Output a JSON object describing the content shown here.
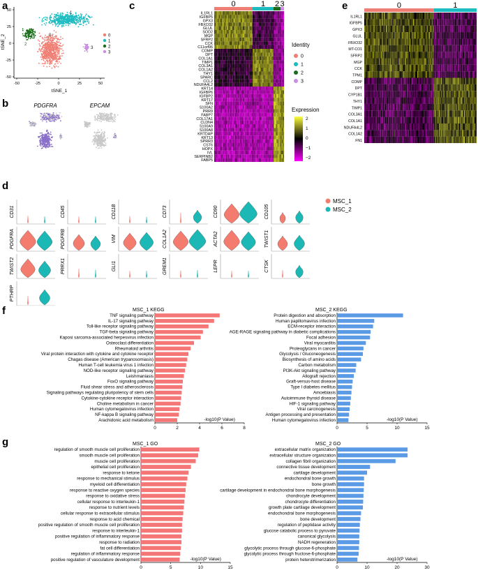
{
  "panel_labels": {
    "a": "a",
    "b": "b",
    "c": "c",
    "d": "d",
    "e": "e",
    "f": "f",
    "g": "g"
  },
  "colors": {
    "c0": "#ef7f75",
    "c1": "#1dbcc1",
    "c2": "#1a6b1a",
    "c3": "#c98fe0",
    "msc1": "#f47c6e",
    "msc2": "#1bb8b6",
    "bar_red": "#f47676",
    "bar_blue": "#5b9be6",
    "pdgfra": "#8a6fc9",
    "grey": "#c8c8c8"
  },
  "panel_a": {
    "xlabel": "tSNE_1",
    "ylabel": "tSNE_2",
    "xticks": [
      "-50",
      "-25",
      "0",
      "25",
      "50"
    ],
    "yticks": [
      "50",
      "25",
      "0",
      "-25",
      "-50"
    ],
    "legend": [
      {
        "label": "0",
        "color": "#ef7f75"
      },
      {
        "label": "1",
        "color": "#1dbcc1"
      },
      {
        "label": "2",
        "color": "#1a6b1a"
      },
      {
        "label": "3",
        "color": "#c98fe0"
      }
    ],
    "cluster_labels": [
      "0",
      "1",
      "2",
      "3"
    ]
  },
  "panel_b": {
    "genes": [
      "PDGFRA",
      "EPCAM"
    ]
  },
  "panel_c": {
    "cluster_headers": [
      "0",
      "1",
      "2",
      "3"
    ],
    "genes": [
      "IL1RL1",
      "IGFBP5",
      "GPX3",
      "FBXO32",
      "GLUL",
      "SOD2",
      "MGP",
      "SFRP2",
      "CCK",
      "C11orf96",
      "COMP",
      "DPT",
      "COL1A1",
      "TIMP1",
      "COL3A1",
      "COL1A2",
      "THY1",
      "SPARC",
      "CCL2",
      "NDUFA4L2",
      "KRT14",
      "IGFBP6",
      "IGFBP2",
      "KRT17",
      "SFN",
      "S100A2",
      "PRR9",
      "FABP7",
      "COL17A1",
      "CLDN4",
      "S100A9",
      "S100A8",
      "KRTDAP",
      "KRT13",
      "SPRR3",
      "CST6",
      "HOPX",
      "IVL",
      "SERPINB2",
      "FABP5"
    ],
    "identity_title": "Identity",
    "identity": [
      {
        "label": "0",
        "color": "#ef7f75"
      },
      {
        "label": "1",
        "color": "#1dbcc1"
      },
      {
        "label": "2",
        "color": "#1a6b1a"
      },
      {
        "label": "3",
        "color": "#c98fe0"
      }
    ],
    "expression_title": "Expression",
    "expression_ticks": [
      "2",
      "1",
      "0",
      "−1",
      "−2"
    ]
  },
  "panel_e": {
    "cluster_headers": [
      "0",
      "1"
    ],
    "genes": [
      "IL1RL1",
      "IGFBP5",
      "GPX3",
      "GLUL",
      "FBXO32",
      "MT-CO1",
      "SFRP2",
      "MGP",
      "CCK",
      "TPM1",
      "COMP",
      "DPT",
      "CYP1B1",
      "THY1",
      "TIMP1",
      "COL3A1",
      "COL1A1",
      "NDUFA4L2",
      "COL1A2",
      "FN1"
    ]
  },
  "panel_d": {
    "legend": [
      {
        "label": "MSC_1",
        "color": "#f47c6e"
      },
      {
        "label": "MSC_2",
        "color": "#1bb8b6"
      }
    ],
    "violins": [
      {
        "gene": "CD31",
        "m1": 0.05,
        "m2": 0.03
      },
      {
        "gene": "CD45",
        "m1": 0.03,
        "m2": 0.03
      },
      {
        "gene": "CD11B",
        "m1": 0.04,
        "m2": 0.02
      },
      {
        "gene": "CD73",
        "m1": 0.12,
        "m2": 0.35
      },
      {
        "gene": "CD90",
        "m1": 0.8,
        "m2": 0.95
      },
      {
        "gene": "CD105",
        "m1": 0.18,
        "m2": 0.3
      },
      {
        "gene": "PDGFRA",
        "m1": 0.85,
        "m2": 0.8
      },
      {
        "gene": "PDGFRB",
        "m1": 0.55,
        "m2": 0.45
      },
      {
        "gene": "VIM",
        "m1": 0.65,
        "m2": 0.7
      },
      {
        "gene": "COL1A2",
        "m1": 0.8,
        "m2": 0.9
      },
      {
        "gene": "ACTA2",
        "m1": 0.85,
        "m2": 0.75
      },
      {
        "gene": "TWIST1",
        "m1": 0.45,
        "m2": 0.5
      },
      {
        "gene": "TWIST2",
        "m1": 0.75,
        "m2": 0.6
      },
      {
        "gene": "PRRX1",
        "m1": 0.08,
        "m2": 0.06
      },
      {
        "gene": "GLI1",
        "m1": 0.03,
        "m2": 0.03
      },
      {
        "gene": "GREM1",
        "m1": 0.04,
        "m2": 0.05
      },
      {
        "gene": "LEPR",
        "m1": 0.03,
        "m2": 0.03
      },
      {
        "gene": "CTSK",
        "m1": 0.05,
        "m2": 0.3
      },
      {
        "gene": "PTHRP",
        "m1": 0.08,
        "m2": 0.5
      }
    ]
  },
  "chart_data": [
    {
      "type": "bar",
      "orientation": "horizontal",
      "title": "MSC_1 KEGG",
      "xlabel": "-log10(P Value)",
      "xlim": [
        0,
        8
      ],
      "xticks": [
        "0",
        "2",
        "4",
        "6",
        "8"
      ],
      "categories": [
        "TNF signaling pathway",
        "IL-17 signaling pathway",
        "Toll-like receptor signaling pathway",
        "TGF-beta signaling pathway",
        "Kaposi sarcoma-associated herpesvirus infection",
        "Osteoclast differentiation",
        "Rheumatoid arthritis",
        "Viral protein interaction with cytokine and cytokine receptor",
        "Chagas disease (American trypanosomiasis)",
        "Human T-cell leukemia virus 1 infection",
        "NOD-like receptor signaling pathway",
        "Leishmaniasis",
        "FoxO signaling pathway",
        "Fluid shear stress and atherosclerosis",
        "Signaling pathways regulating pluripotency of stem cells",
        "Cytokine-cytokine receptor interaction",
        "Choline metabolism in cancer",
        "Human cytomegalovirus infection",
        "NF-kappa B signaling pathway",
        "Arachidonic acid metabolism"
      ],
      "values": [
        5.8,
        5.3,
        4.8,
        4.3,
        4.1,
        3.5,
        3.2,
        3.0,
        2.9,
        2.8,
        2.7,
        2.6,
        2.5,
        2.45,
        2.4,
        2.35,
        2.3,
        2.2,
        2.15,
        2.0
      ]
    },
    {
      "type": "bar",
      "orientation": "horizontal",
      "title": "MSC_2 KEGG",
      "xlabel": "-log10(P Value)",
      "xlim": [
        0,
        15
      ],
      "xticks": [
        "0",
        "5",
        "10",
        "15"
      ],
      "categories": [
        "Protein digestion and absorption",
        "Human papillomavirus infection",
        "ECM-receptor interaction",
        "AGE-RAGE signaling pathway in diabetic complications",
        "Focal adhesion",
        "Viral myocarditis",
        "Proteoglycans in cancer",
        "Glycolysis / Gluconeogenesis",
        "Biosynthesis of amino acids",
        "Carbon metabolism",
        "PI3K-Akt signaling pathway",
        "Allograft rejection",
        "Graft-versus-host disease",
        "Type I diabetes mellitus",
        "Amoebiasis",
        "Autoimmune thyroid disease",
        "HIF-1 signaling pathway",
        "Viral carcinogenesis",
        "Antigen processing and presentation",
        "Human cytomegalovirus infection"
      ],
      "values": [
        11.0,
        6.2,
        6.0,
        5.6,
        5.5,
        4.8,
        4.4,
        4.3,
        4.0,
        3.2,
        3.1,
        2.8,
        2.6,
        2.5,
        2.4,
        2.3,
        2.2,
        2.1,
        2.0,
        1.9
      ]
    },
    {
      "type": "bar",
      "orientation": "horizontal",
      "title": "MSC_1 GO",
      "xlabel": "-log10(P Value)",
      "xlim": [
        0,
        15
      ],
      "xticks": [
        "0",
        "5",
        "10",
        "15"
      ],
      "categories": [
        "regulation of smooth muscle cell proliferation",
        "smooth muscle cell proliferation",
        "muscle cell proliferation",
        "epithelial cell proliferation",
        "response to ketone",
        "response to mechanical stimulus",
        "myeloid cell differentiation",
        "response to reactive oxygen species",
        "response to oxidative stress",
        "cellular response to interleukin-1",
        "response to nutrient levels",
        "cellular response to extracellular stimulus",
        "response to acid chemical",
        "positive regulation of smooth muscle cell proliferation",
        "response to interleukin-1",
        "positive regulation of inflammatory response",
        "response to radiation",
        "fat cell differentiation",
        "regulation of inflammatory response",
        "positive regulation of vasculature development"
      ],
      "values": [
        9.8,
        9.6,
        9.2,
        8.4,
        8.0,
        7.8,
        7.6,
        7.5,
        7.4,
        7.3,
        7.2,
        7.1,
        7.0,
        6.9,
        6.9,
        6.8,
        6.8,
        6.7,
        6.6,
        6.5
      ]
    },
    {
      "type": "bar",
      "orientation": "horizontal",
      "title": "MSC_2 GO",
      "xlabel": "-log10(P Value)",
      "xlim": [
        0,
        30
      ],
      "xticks": [
        "0",
        "10",
        "20",
        "30"
      ],
      "categories": [
        "extracellular matrix organization",
        "extracellular structure organization",
        "collagen fibril organization",
        "connective tissue development",
        "cartilage development",
        "endochondral bone growth",
        "bone growth",
        "cartilage development in endochondral bone morphogenesis",
        "chondrocyte development",
        "chondrocyte differentiation",
        "growth plate cartilage development",
        "endochondral bone morphogenesis",
        "bone development",
        "regulation of peptidase activity",
        "glucose catabolic process to pyruvate",
        "canonical glycolysis",
        "NADH regeneration",
        "glycolytic process through glucose-6-phosphate",
        "glycolytic process through fructose-6-phosphate",
        "protein heterotrimerization"
      ],
      "values": [
        23.5,
        23.5,
        19.5,
        11.0,
        10.0,
        9.0,
        9.0,
        8.9,
        8.8,
        8.7,
        8.6,
        8.0,
        7.8,
        7.6,
        7.5,
        7.4,
        7.4,
        7.3,
        7.2,
        6.8
      ]
    }
  ]
}
